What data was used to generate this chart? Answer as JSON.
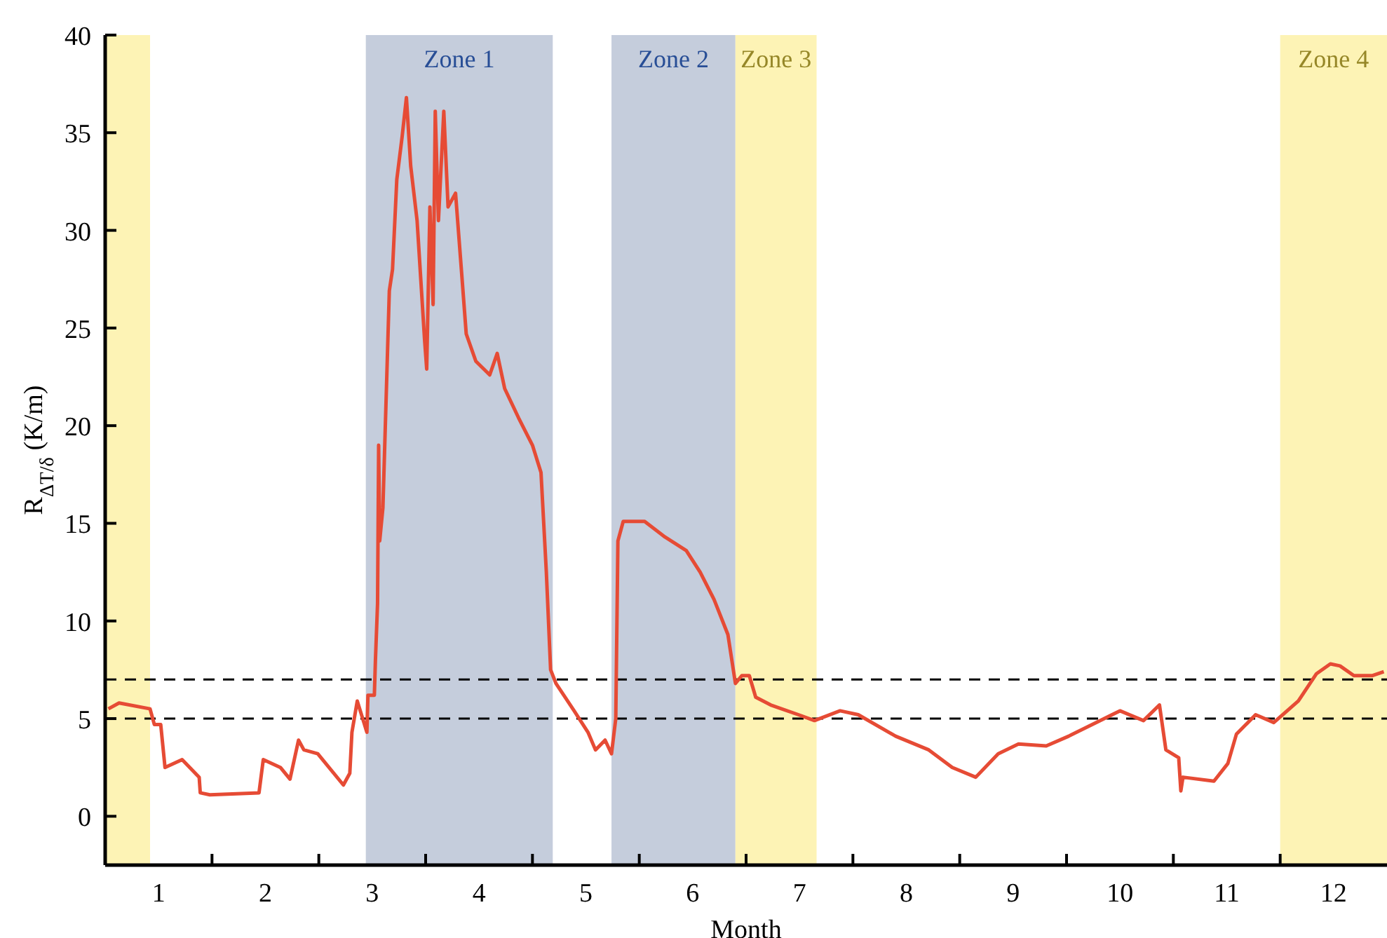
{
  "chart_data": {
    "type": "line",
    "xlabel": "Month",
    "ylabel": "R$_{ΔT/δ}$ (K/m)",
    "xlim": [
      0.5,
      12.5
    ],
    "xticks": [
      {
        "value": 1,
        "label": "1"
      },
      {
        "value": 1.5,
        "label": null
      },
      {
        "value": 2,
        "label": "2"
      },
      {
        "value": 2.5,
        "label": null
      },
      {
        "value": 3,
        "label": "3"
      },
      {
        "value": 3.5,
        "label": null
      },
      {
        "value": 4,
        "label": "4"
      },
      {
        "value": 4.5,
        "label": null
      },
      {
        "value": 5,
        "label": "5"
      },
      {
        "value": 5.5,
        "label": null
      },
      {
        "value": 6,
        "label": "6"
      },
      {
        "value": 6.5,
        "label": null
      },
      {
        "value": 7,
        "label": "7"
      },
      {
        "value": 7.5,
        "label": null
      },
      {
        "value": 8,
        "label": "8"
      },
      {
        "value": 8.5,
        "label": null
      },
      {
        "value": 9,
        "label": "9"
      },
      {
        "value": 9.5,
        "label": null
      },
      {
        "value": 10,
        "label": "10"
      },
      {
        "value": 10.5,
        "label": null
      },
      {
        "value": 11,
        "label": "11"
      },
      {
        "value": 11.5,
        "label": null
      },
      {
        "value": 12,
        "label": "12"
      }
    ],
    "ylim": [
      -2.5,
      40
    ],
    "yticks": [
      0,
      5,
      10,
      15,
      20,
      25,
      30,
      35,
      40
    ],
    "line_style": "solid",
    "marker": "none",
    "series": [
      {
        "color": "#e64b35",
        "x": [
          0.53,
          0.63,
          0.92,
          0.96,
          1.02,
          1.06,
          1.22,
          1.38,
          1.39,
          1.48,
          1.94,
          1.98,
          2.14,
          2.23,
          2.31,
          2.36,
          2.49,
          2.73,
          2.79,
          2.81,
          2.86,
          2.95,
          2.96,
          3.02,
          3.03,
          3.05,
          3.06,
          3.07,
          3.1,
          3.16,
          3.19,
          3.23,
          3.28,
          3.32,
          3.36,
          3.42,
          3.49,
          3.51,
          3.54,
          3.57,
          3.59,
          3.62,
          3.67,
          3.71,
          3.78,
          3.84,
          3.88,
          3.97,
          4.1,
          4.17,
          4.24,
          4.37,
          4.5,
          4.58,
          4.63,
          4.67,
          4.72,
          4.89,
          5.02,
          5.09,
          5.18,
          5.24,
          5.28,
          5.3,
          5.35,
          5.55,
          5.74,
          5.94,
          6.07,
          6.2,
          6.33,
          6.4,
          6.46,
          6.53,
          6.59,
          6.73,
          6.99,
          7.14,
          7.38,
          7.55,
          7.9,
          8.21,
          8.43,
          8.65,
          8.86,
          9.05,
          9.31,
          9.52,
          9.74,
          10.0,
          10.22,
          10.37,
          10.43,
          10.55,
          10.57,
          10.59,
          10.88,
          11.01,
          11.09,
          11.27,
          11.44,
          11.67,
          11.84,
          11.97,
          12.06,
          12.19,
          12.36,
          12.47
        ],
        "values": [
          5.5,
          5.8,
          5.5,
          4.7,
          4.7,
          2.5,
          2.9,
          2.0,
          1.2,
          1.1,
          1.2,
          2.9,
          2.5,
          1.9,
          3.9,
          3.4,
          3.2,
          1.6,
          2.2,
          4.3,
          5.9,
          4.3,
          6.2,
          6.2,
          8.0,
          10.9,
          19.0,
          14.1,
          15.8,
          26.9,
          28.0,
          32.6,
          34.8,
          36.8,
          33.3,
          30.5,
          24.4,
          22.9,
          31.2,
          26.2,
          36.1,
          30.5,
          36.1,
          31.2,
          31.9,
          27.6,
          24.7,
          23.3,
          22.6,
          23.7,
          21.9,
          20.4,
          19.0,
          17.6,
          12.5,
          7.5,
          6.8,
          5.4,
          4.3,
          3.4,
          3.9,
          3.2,
          5.0,
          14.1,
          15.1,
          15.1,
          14.3,
          13.6,
          12.5,
          11.1,
          9.3,
          6.8,
          7.2,
          7.2,
          6.1,
          5.7,
          5.2,
          4.9,
          5.4,
          5.2,
          4.1,
          3.4,
          2.5,
          2.0,
          3.2,
          3.7,
          3.6,
          4.1,
          4.7,
          5.4,
          4.9,
          5.7,
          3.4,
          3.0,
          1.3,
          2.0,
          1.8,
          2.7,
          4.2,
          5.2,
          4.8,
          5.9,
          7.3,
          7.8,
          7.7,
          7.2,
          7.2,
          7.4
        ]
      }
    ],
    "ref_lines": [
      {
        "axis": "y",
        "value": 7,
        "color": "#000000",
        "line_style": "dashed"
      },
      {
        "axis": "y",
        "value": 5,
        "color": "#000000",
        "line_style": "dashed"
      }
    ],
    "bands": [
      {
        "axis": "x",
        "from": 0.5,
        "to": 0.92,
        "color": "#fdf3b5"
      },
      {
        "axis": "x",
        "from": 2.94,
        "to": 4.69,
        "label": "Zone 1",
        "color": "#c5cddc"
      },
      {
        "axis": "x",
        "from": 5.24,
        "to": 6.4,
        "label": "Zone 2",
        "color": "#c5cddc"
      },
      {
        "axis": "x",
        "from": 6.4,
        "to": 7.16,
        "label": "Zone 3",
        "color": "#fdf3b5"
      },
      {
        "axis": "x",
        "from": 11.5,
        "to": 12.5,
        "label": "Zone 4",
        "color": "#fdf3b5"
      }
    ]
  }
}
